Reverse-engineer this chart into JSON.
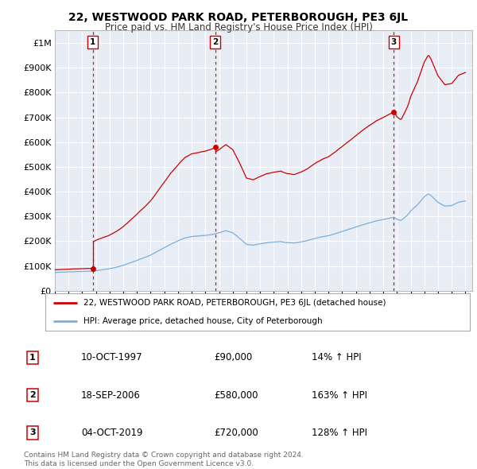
{
  "title": "22, WESTWOOD PARK ROAD, PETERBOROUGH, PE3 6JL",
  "subtitle": "Price paid vs. HM Land Registry's House Price Index (HPI)",
  "xmin": 1995.0,
  "xmax": 2025.5,
  "ymin": 0,
  "ymax": 1050000,
  "yticks": [
    0,
    100000,
    200000,
    300000,
    400000,
    500000,
    600000,
    700000,
    800000,
    900000,
    1000000
  ],
  "ytick_labels": [
    "£0",
    "£100K",
    "£200K",
    "£300K",
    "£400K",
    "£500K",
    "£600K",
    "£700K",
    "£800K",
    "£900K",
    "£1M"
  ],
  "sales": [
    {
      "date": 1997.78,
      "price": 90000,
      "label": "1"
    },
    {
      "date": 2006.72,
      "price": 580000,
      "label": "2"
    },
    {
      "date": 2019.76,
      "price": 720000,
      "label": "3"
    }
  ],
  "sale_color": "#cc0000",
  "hpi_color": "#7aaedc",
  "background_color": "#e8edf5",
  "grid_color": "#ffffff",
  "legend_line1": "22, WESTWOOD PARK ROAD, PETERBOROUGH, PE3 6JL (detached house)",
  "legend_line2": "HPI: Average price, detached house, City of Peterborough",
  "table_data": [
    {
      "num": "1",
      "date": "10-OCT-1997",
      "price": "£90,000",
      "hpi": "14% ↑ HPI"
    },
    {
      "num": "2",
      "date": "18-SEP-2006",
      "price": "£580,000",
      "hpi": "163% ↑ HPI"
    },
    {
      "num": "3",
      "date": "04-OCT-2019",
      "price": "£720,000",
      "hpi": "128% ↑ HPI"
    }
  ],
  "footer1": "Contains HM Land Registry data © Crown copyright and database right 2024.",
  "footer2": "This data is licensed under the Open Government Licence v3.0."
}
